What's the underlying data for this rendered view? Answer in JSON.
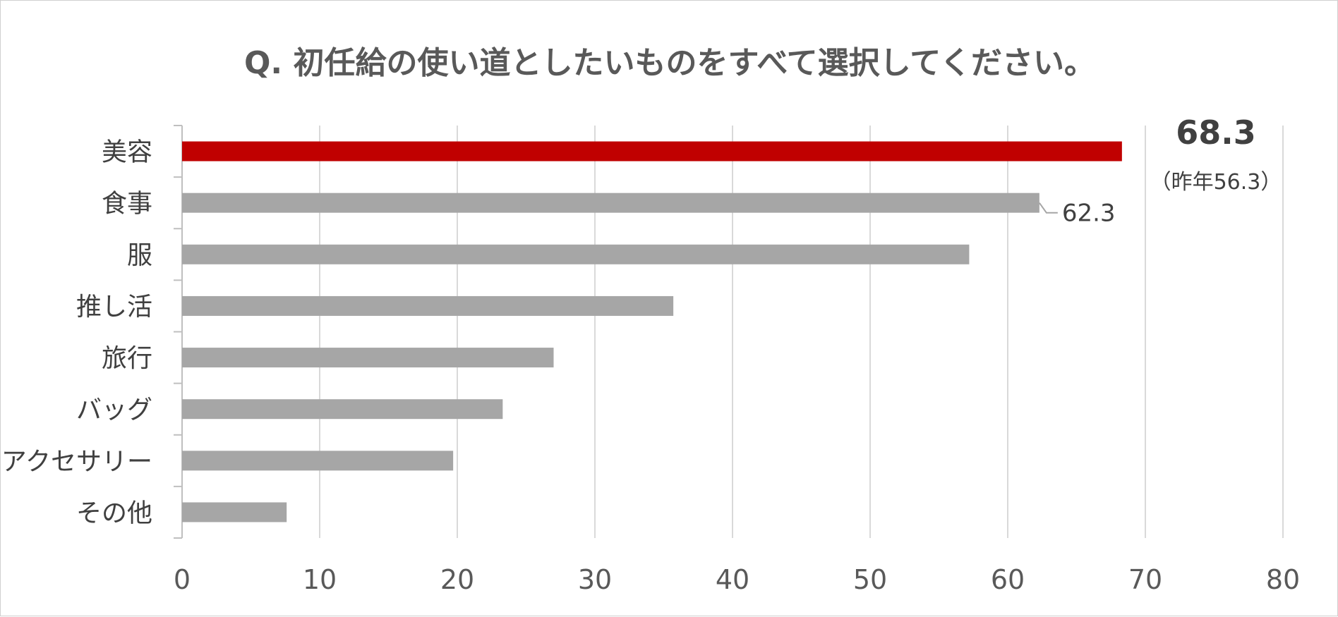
{
  "chart_data": {
    "type": "bar",
    "orientation": "horizontal",
    "title": "Q. 初任給の使い道としたいものをすべて選択してください。",
    "categories": [
      "美容",
      "食事",
      "服",
      "推し活",
      "旅行",
      "バッグ",
      "アクセサリー",
      "その他"
    ],
    "values": [
      68.3,
      62.3,
      57.2,
      35.7,
      27.0,
      23.3,
      19.7,
      7.6
    ],
    "highlight_index": 0,
    "data_labels": [
      {
        "index": 0,
        "text": "68.3",
        "note": "（昨年56.3）"
      },
      {
        "index": 1,
        "text": "62.3"
      }
    ],
    "xlim": [
      0,
      80
    ],
    "xticks": [
      0,
      10,
      20,
      30,
      40,
      50,
      60,
      70,
      80
    ],
    "grid": true,
    "legend": "none",
    "colors": {
      "highlight": "#c00000",
      "bar": "#a6a6a6",
      "grid": "#d9d9d9",
      "axis": "#bfbfbf",
      "text": "#404040"
    }
  }
}
